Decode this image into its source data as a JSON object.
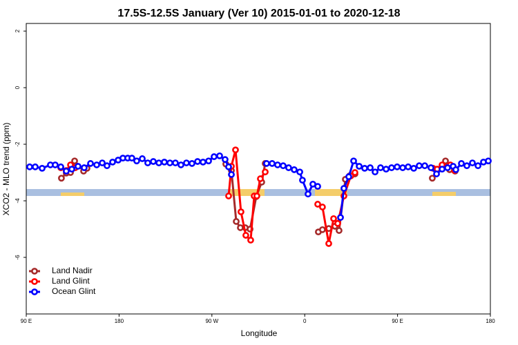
{
  "chart_data": {
    "type": "line",
    "title": "17.5S-12.5S January (Ver 10)   2015-01-01 to 2020-12-18",
    "x_label": "Longitude",
    "y_label": "XCO2 - MLO trend (ppm)",
    "xlim": [
      90,
      540
    ],
    "ylim": [
      -8,
      2.27
    ],
    "xticks": [
      {
        "value": 90,
        "label": "90 E"
      },
      {
        "value": 180,
        "label": "180"
      },
      {
        "value": 270,
        "label": "90 W"
      },
      {
        "value": 360,
        "label": "0"
      },
      {
        "value": 450,
        "label": "90 E"
      },
      {
        "value": 540,
        "label": "180"
      }
    ],
    "yticks": [
      -6,
      -4,
      -2,
      0,
      2
    ],
    "legend": "bottomleft",
    "series": [
      {
        "name": "Land Nadir",
        "color": "#a52a2a",
        "x": [
          124.1,
          128.8,
          132.9,
          136.9,
          145.6,
          148.9,
          null,
          283.5,
          288.9,
          293.6,
          297.6,
          302.3,
          307.0,
          313.0,
          318.3,
          321.7,
          null,
          373.2,
          377.2,
          383.3,
          389.3,
          393.3,
          399.4,
          403.4,
          408.7,
          null,
          483.7,
          488.4,
          493.2,
          496.5,
          500.5,
          505.8
        ],
        "values": [
          -3.2,
          -3.02,
          -3.0,
          -2.59,
          -2.95,
          -2.85,
          null,
          -2.7,
          -2.93,
          -4.73,
          -4.95,
          -4.95,
          -5.0,
          -3.85,
          -3.34,
          -2.68,
          null,
          -5.1,
          -5.02,
          -4.98,
          -4.9,
          -5.05,
          -3.24,
          -3.12,
          -3.05,
          null,
          -3.2,
          -2.93,
          -2.78,
          -2.59,
          -2.9,
          -2.95
        ]
      },
      {
        "name": "Land Glint",
        "color": "#ff0000",
        "x": [
          123.5,
          128.8,
          132.9,
          137.5,
          null,
          286.2,
          288.9,
          292.9,
          298.2,
          302.9,
          307.6,
          311.0,
          313.6,
          317.0,
          321.7,
          null,
          372.6,
          377.2,
          383.3,
          388.0,
          392.0,
          398.0,
          404.7,
          408.7,
          null,
          484.4,
          488.4,
          493.2,
          501.2,
          505.2
        ],
        "values": [
          -2.83,
          -2.93,
          -2.73,
          -2.83,
          null,
          -3.83,
          -2.78,
          -2.2,
          -4.39,
          -5.22,
          -5.39,
          -3.83,
          -3.83,
          -3.22,
          -2.98,
          null,
          -4.12,
          -4.22,
          -5.51,
          -4.63,
          -4.8,
          -3.83,
          -3.12,
          -3.0,
          null,
          -2.85,
          -2.88,
          -2.73,
          -2.73,
          -2.93
        ]
      },
      {
        "name": "Ocean Glint",
        "color": "#0000ff",
        "x": [
          93.3,
          98.7,
          105.4,
          113.4,
          118.1,
          123.5,
          128.8,
          134.2,
          140.2,
          146.2,
          152.3,
          158.3,
          163.7,
          168.3,
          173.7,
          179.1,
          183.7,
          188.4,
          192.4,
          197.1,
          202.5,
          207.8,
          213.2,
          218.6,
          223.9,
          229.3,
          234.6,
          240.0,
          245.3,
          250.7,
          256.1,
          261.4,
          266.8,
          272.1,
          277.5,
          282.8,
          286.2,
          288.9,
          null,
          323.0,
          328.4,
          333.7,
          339.1,
          344.4,
          349.8,
          355.2,
          357.8,
          363.2,
          367.9,
          372.6,
          null,
          394.7,
          398.0,
          402.7,
          407.4,
          412.8,
          418.1,
          423.5,
          428.2,
          433.5,
          438.9,
          444.2,
          449.6,
          455.0,
          460.3,
          465.7,
          471.0,
          476.4,
          482.4,
          487.8,
          493.2,
          498.5,
          503.9,
          506.5,
          511.9,
          517.2,
          522.6,
          528.0,
          533.3,
          538.0
        ],
        "values": [
          -2.8,
          -2.8,
          -2.85,
          -2.73,
          -2.73,
          -2.8,
          -2.95,
          -2.88,
          -2.78,
          -2.83,
          -2.68,
          -2.73,
          -2.66,
          -2.76,
          -2.63,
          -2.56,
          -2.49,
          -2.49,
          -2.49,
          -2.59,
          -2.51,
          -2.66,
          -2.61,
          -2.66,
          -2.63,
          -2.66,
          -2.66,
          -2.73,
          -2.66,
          -2.68,
          -2.61,
          -2.63,
          -2.59,
          -2.44,
          -2.41,
          -2.54,
          -2.8,
          -3.07,
          null,
          -2.68,
          -2.68,
          -2.73,
          -2.76,
          -2.83,
          -2.9,
          -2.98,
          -3.27,
          -3.76,
          -3.41,
          -3.49,
          null,
          -4.59,
          -3.56,
          -3.15,
          -2.59,
          -2.78,
          -2.85,
          -2.83,
          -2.98,
          -2.83,
          -2.88,
          -2.83,
          -2.8,
          -2.83,
          -2.8,
          -2.85,
          -2.76,
          -2.76,
          -2.83,
          -3.05,
          -2.88,
          -2.83,
          -2.78,
          -2.9,
          -2.68,
          -2.76,
          -2.66,
          -2.76,
          -2.63,
          -2.59
        ]
      }
    ]
  }
}
